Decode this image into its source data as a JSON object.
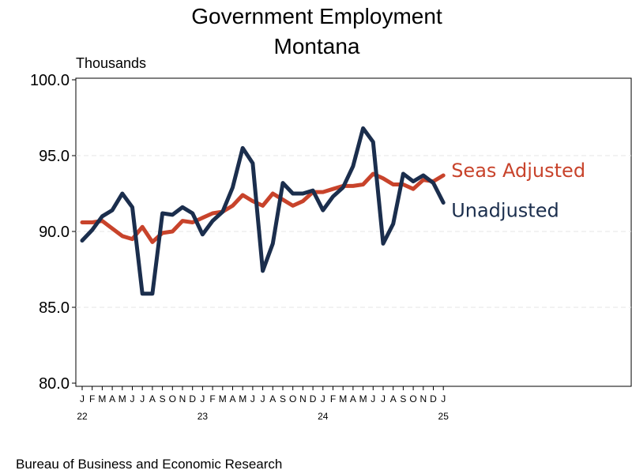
{
  "chart_data": {
    "type": "line",
    "title": "Government Employment",
    "subtitle": "Montana",
    "ylabel": "Thousands",
    "ylim": [
      80,
      100
    ],
    "yticks": [
      "80.0",
      "85.0",
      "90.0",
      "95.0",
      "100.0"
    ],
    "grid": true,
    "x": [
      "2022-01",
      "2022-02",
      "2022-03",
      "2022-04",
      "2022-05",
      "2022-06",
      "2022-07",
      "2022-08",
      "2022-09",
      "2022-10",
      "2022-11",
      "2022-12",
      "2023-01",
      "2023-02",
      "2023-03",
      "2023-04",
      "2023-05",
      "2023-06",
      "2023-07",
      "2023-08",
      "2023-09",
      "2023-10",
      "2023-11",
      "2023-12",
      "2024-01",
      "2024-02",
      "2024-03",
      "2024-04",
      "2024-05",
      "2024-06",
      "2024-07",
      "2024-08",
      "2024-09",
      "2024-10",
      "2024-11",
      "2024-12",
      "2025-01"
    ],
    "month_ticks": [
      "J",
      "F",
      "M",
      "A",
      "M",
      "J",
      "J",
      "A",
      "S",
      "O",
      "N",
      "D",
      "J",
      "F",
      "M",
      "A",
      "M",
      "J",
      "J",
      "A",
      "S",
      "O",
      "N",
      "D",
      "J",
      "F",
      "M",
      "A",
      "M",
      "J",
      "J",
      "A",
      "S",
      "O",
      "N",
      "D",
      "J"
    ],
    "year_ticks": [
      {
        "at": "2022-01",
        "label": "22"
      },
      {
        "at": "2023-01",
        "label": "23"
      },
      {
        "at": "2024-01",
        "label": "24"
      },
      {
        "at": "2025-01",
        "label": "25"
      }
    ],
    "series": [
      {
        "name": "Seas Adjusted",
        "color": "#c8432b",
        "values": [
          90.6,
          90.6,
          90.7,
          90.2,
          89.7,
          89.5,
          90.3,
          89.3,
          89.9,
          90.0,
          90.7,
          90.6,
          90.9,
          91.2,
          91.3,
          91.7,
          92.4,
          92.0,
          91.7,
          92.5,
          92.1,
          91.7,
          92.0,
          92.6,
          92.6,
          92.8,
          93.0,
          93.0,
          93.1,
          93.8,
          93.5,
          93.1,
          93.1,
          92.8,
          93.4,
          93.3,
          93.7
        ]
      },
      {
        "name": "Unadjusted",
        "color": "#1b2e4d",
        "values": [
          89.4,
          90.1,
          91.0,
          91.4,
          92.5,
          91.6,
          85.9,
          85.9,
          91.2,
          91.1,
          91.6,
          91.2,
          89.8,
          90.7,
          91.3,
          92.9,
          95.5,
          94.5,
          87.4,
          89.2,
          93.2,
          92.5,
          92.5,
          92.7,
          91.4,
          92.3,
          92.9,
          94.3,
          96.8,
          95.9,
          89.2,
          90.5,
          93.8,
          93.3,
          93.7,
          93.2,
          91.9
        ]
      }
    ]
  },
  "footer": {
    "source": "Bureau of Business and Economic Research"
  }
}
